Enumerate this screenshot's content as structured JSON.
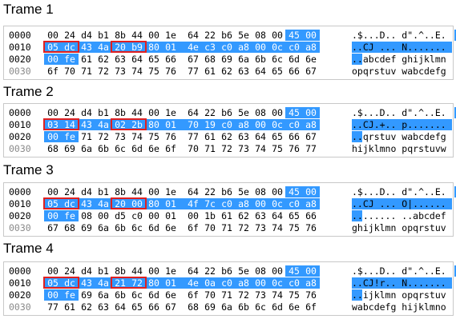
{
  "frames": [
    {
      "title": "Trame 1",
      "rows": [
        {
          "offset": "0000",
          "bytes": [
            "00",
            "24",
            "d4",
            "b1",
            "8b",
            "44",
            "00",
            "1e",
            "64",
            "22",
            "b6",
            "5e",
            "08",
            "00",
            "45",
            "00"
          ],
          "ascii": ".$...D.. d\".^..E."
        },
        {
          "offset": "0010",
          "bytes": [
            "05",
            "dc",
            "43",
            "4a",
            "20",
            "b9",
            "80",
            "01",
            "4e",
            "c3",
            "c0",
            "a8",
            "00",
            "0c",
            "c0",
            "a8"
          ],
          "ascii": "..CJ ... N......."
        },
        {
          "offset": "0020",
          "bytes": [
            "00",
            "fe",
            "61",
            "62",
            "63",
            "64",
            "65",
            "66",
            "67",
            "68",
            "69",
            "6a",
            "6b",
            "6c",
            "6d",
            "6e"
          ],
          "ascii": "..abcdef ghijklmn"
        },
        {
          "offset": "0030",
          "bytes": [
            "6f",
            "70",
            "71",
            "72",
            "73",
            "74",
            "75",
            "76",
            "77",
            "61",
            "62",
            "63",
            "64",
            "65",
            "66",
            "67"
          ],
          "ascii": "opqrstuv wabcdefg"
        }
      ]
    },
    {
      "title": "Trame 2",
      "rows": [
        {
          "offset": "0000",
          "bytes": [
            "00",
            "24",
            "d4",
            "b1",
            "8b",
            "44",
            "00",
            "1e",
            "64",
            "22",
            "b6",
            "5e",
            "08",
            "00",
            "45",
            "00"
          ],
          "ascii": ".$...D.. d\".^..E."
        },
        {
          "offset": "0010",
          "bytes": [
            "03",
            "14",
            "43",
            "4a",
            "02",
            "2b",
            "80",
            "01",
            "70",
            "19",
            "c0",
            "a8",
            "00",
            "0c",
            "c0",
            "a8"
          ],
          "ascii": "..CJ.+.. p......."
        },
        {
          "offset": "0020",
          "bytes": [
            "00",
            "fe",
            "71",
            "72",
            "73",
            "74",
            "75",
            "76",
            "77",
            "61",
            "62",
            "63",
            "64",
            "65",
            "66",
            "67"
          ],
          "ascii": "..qrstuv wabcdefg"
        },
        {
          "offset": "0030",
          "bytes": [
            "68",
            "69",
            "6a",
            "6b",
            "6c",
            "6d",
            "6e",
            "6f",
            "70",
            "71",
            "72",
            "73",
            "74",
            "75",
            "76",
            "77"
          ],
          "ascii": "hijklmno pqrstuvw"
        }
      ]
    },
    {
      "title": "Trame 3",
      "rows": [
        {
          "offset": "0000",
          "bytes": [
            "00",
            "24",
            "d4",
            "b1",
            "8b",
            "44",
            "00",
            "1e",
            "64",
            "22",
            "b6",
            "5e",
            "08",
            "00",
            "45",
            "00"
          ],
          "ascii": ".$...D.. d\".^..E."
        },
        {
          "offset": "0010",
          "bytes": [
            "05",
            "dc",
            "43",
            "4a",
            "20",
            "00",
            "80",
            "01",
            "4f",
            "7c",
            "c0",
            "a8",
            "00",
            "0c",
            "c0",
            "a8"
          ],
          "ascii": "..CJ ... O|......"
        },
        {
          "offset": "0020",
          "bytes": [
            "00",
            "fe",
            "08",
            "00",
            "d5",
            "c0",
            "00",
            "01",
            "00",
            "1b",
            "61",
            "62",
            "63",
            "64",
            "65",
            "66"
          ],
          "ascii": "........ ..abcdef"
        },
        {
          "offset": "0030",
          "bytes": [
            "67",
            "68",
            "69",
            "6a",
            "6b",
            "6c",
            "6d",
            "6e",
            "6f",
            "70",
            "71",
            "72",
            "73",
            "74",
            "75",
            "76"
          ],
          "ascii": "ghijklmn opqrstuv"
        }
      ]
    },
    {
      "title": "Trame 4",
      "rows": [
        {
          "offset": "0000",
          "bytes": [
            "00",
            "24",
            "d4",
            "b1",
            "8b",
            "44",
            "00",
            "1e",
            "64",
            "22",
            "b6",
            "5e",
            "08",
            "00",
            "45",
            "00"
          ],
          "ascii": ".$...D.. d\".^..E."
        },
        {
          "offset": "0010",
          "bytes": [
            "05",
            "dc",
            "43",
            "4a",
            "21",
            "72",
            "80",
            "01",
            "4e",
            "0a",
            "c0",
            "a8",
            "00",
            "0c",
            "c0",
            "a8"
          ],
          "ascii": "..CJ!r.. N......."
        },
        {
          "offset": "0020",
          "bytes": [
            "00",
            "fe",
            "69",
            "6a",
            "6b",
            "6c",
            "6d",
            "6e",
            "6f",
            "70",
            "71",
            "72",
            "73",
            "74",
            "75",
            "76"
          ],
          "ascii": "..ijklmn opqrstuv"
        },
        {
          "offset": "0030",
          "bytes": [
            "77",
            "61",
            "62",
            "63",
            "64",
            "65",
            "66",
            "67",
            "68",
            "69",
            "6a",
            "6b",
            "6c",
            "6d",
            "6e",
            "6f"
          ],
          "ascii": "wabcdefg hijklmno"
        }
      ]
    }
  ],
  "colors": {
    "selection": "#3399ff",
    "highlight_box": "#e02020"
  }
}
